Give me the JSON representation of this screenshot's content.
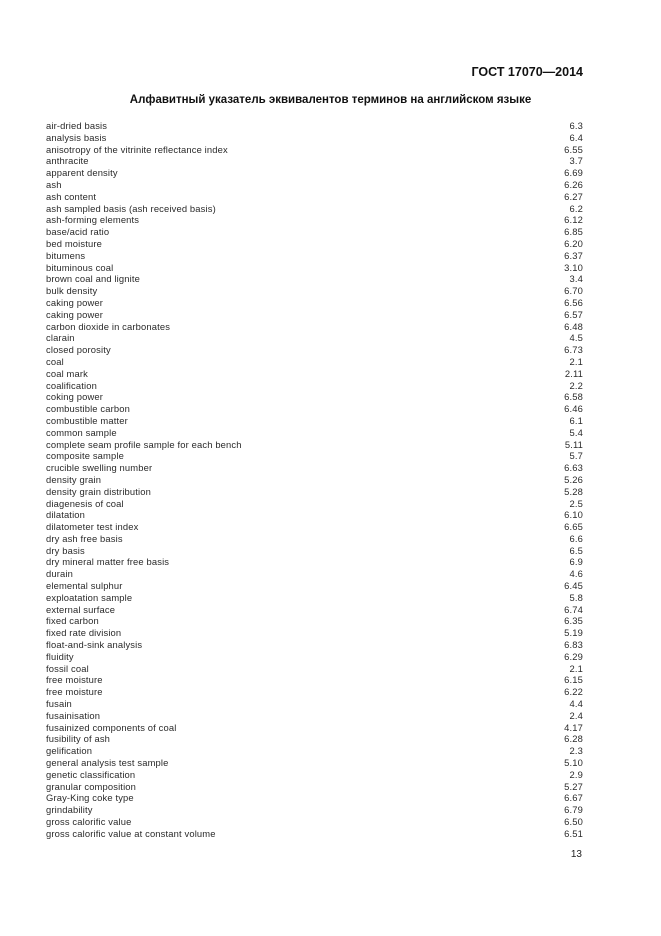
{
  "header": {
    "standard": "ГОСТ 17070—2014"
  },
  "title": "Алфавитный указатель эквивалентов терминов на английском языке",
  "entries": [
    {
      "term": "air-dried basis",
      "ref": "6.3"
    },
    {
      "term": "analysis basis",
      "ref": "6.4"
    },
    {
      "term": "anisotropy of the vitrinite reflectance index",
      "ref": "6.55"
    },
    {
      "term": "anthracite",
      "ref": "3.7"
    },
    {
      "term": "apparent density",
      "ref": "6.69"
    },
    {
      "term": "ash",
      "ref": "6.26"
    },
    {
      "term": "ash content",
      "ref": "6.27"
    },
    {
      "term": "ash sampled basis (ash received basis)",
      "ref": "6.2"
    },
    {
      "term": "ash-forming elements",
      "ref": "6.12"
    },
    {
      "term": "base/acid ratio",
      "ref": "6.85"
    },
    {
      "term": "bed moisture",
      "ref": "6.20"
    },
    {
      "term": "bitumens",
      "ref": "6.37"
    },
    {
      "term": "bituminous coal",
      "ref": "3.10"
    },
    {
      "term": "brown coal and lignite",
      "ref": "3.4"
    },
    {
      "term": "bulk density",
      "ref": "6.70"
    },
    {
      "term": "caking power",
      "ref": "6.56"
    },
    {
      "term": "caking power",
      "ref": "6.57"
    },
    {
      "term": "carbon dioxide in carbonates",
      "ref": "6.48"
    },
    {
      "term": "clarain",
      "ref": "4.5"
    },
    {
      "term": "closed porosity",
      "ref": "6.73"
    },
    {
      "term": "coal",
      "ref": "2.1"
    },
    {
      "term": "coal mark",
      "ref": "2.11"
    },
    {
      "term": "coalification",
      "ref": "2.2"
    },
    {
      "term": "coking power",
      "ref": "6.58"
    },
    {
      "term": "combustible carbon",
      "ref": "6.46"
    },
    {
      "term": "combustible matter",
      "ref": "6.1"
    },
    {
      "term": "common sample",
      "ref": "5.4"
    },
    {
      "term": "complete seam profile sample for each bench",
      "ref": "5.11"
    },
    {
      "term": "composite sample",
      "ref": "5.7"
    },
    {
      "term": "crucible swelling number",
      "ref": "6.63"
    },
    {
      "term": "density grain",
      "ref": "5.26"
    },
    {
      "term": "density grain distribution",
      "ref": "5.28"
    },
    {
      "term": "diagenesis of coal",
      "ref": "2.5"
    },
    {
      "term": "dilatation",
      "ref": "6.10"
    },
    {
      "term": "dilatometer test index",
      "ref": "6.65"
    },
    {
      "term": "dry ash free basis",
      "ref": "6.6"
    },
    {
      "term": "dry basis",
      "ref": "6.5"
    },
    {
      "term": "dry mineral matter free basis",
      "ref": "6.9"
    },
    {
      "term": "durain",
      "ref": "4.6"
    },
    {
      "term": "elemental sulphur",
      "ref": "6.45"
    },
    {
      "term": "exploatation sample",
      "ref": "5.8"
    },
    {
      "term": "external surface",
      "ref": "6.74"
    },
    {
      "term": "fixed carbon",
      "ref": "6.35"
    },
    {
      "term": "fixed rate division",
      "ref": "5.19"
    },
    {
      "term": "float-and-sink analysis",
      "ref": "6.83"
    },
    {
      "term": "fluidity",
      "ref": "6.29"
    },
    {
      "term": "fossil coal",
      "ref": "2.1"
    },
    {
      "term": "free moisture",
      "ref": "6.15"
    },
    {
      "term": "free moisture",
      "ref": "6.22"
    },
    {
      "term": "fusain",
      "ref": "4.4"
    },
    {
      "term": "fusainisation",
      "ref": "2.4"
    },
    {
      "term": "fusainized components of coal",
      "ref": "4.17"
    },
    {
      "term": "fusibility of ash",
      "ref": "6.28"
    },
    {
      "term": "gelification",
      "ref": "2.3"
    },
    {
      "term": "general analysis test sample",
      "ref": "5.10"
    },
    {
      "term": "genetic classification",
      "ref": "2.9"
    },
    {
      "term": "granular composition",
      "ref": "5.27"
    },
    {
      "term": "Gray-King coke type",
      "ref": "6.67"
    },
    {
      "term": "grindability",
      "ref": "6.79"
    },
    {
      "term": "gross calorific value",
      "ref": "6.50"
    },
    {
      "term": "gross calorific value at constant volume",
      "ref": "6.51"
    }
  ],
  "page_number": "13"
}
